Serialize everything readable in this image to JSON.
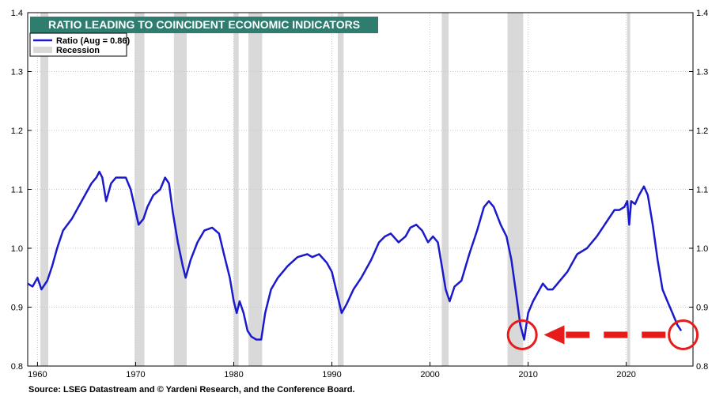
{
  "chart_data": {
    "type": "line",
    "title": "RATIO LEADING TO COINCIDENT ECONOMIC INDICATORS",
    "source": "Source: LSEG Datastream and © Yardeni Research, and the Conference Board.",
    "xlim": [
      1959.0,
      2026.8
    ],
    "ylim": [
      0.8,
      1.4
    ],
    "y_ticks": [
      0.8,
      0.9,
      1.0,
      1.1,
      1.2,
      1.3,
      1.4
    ],
    "y_tick_labels": [
      "0.8",
      "0.9",
      "1.0",
      "1.1",
      "1.2",
      "1.3",
      "1.4"
    ],
    "x_ticks": [
      1960,
      1970,
      1980,
      1990,
      2000,
      2010,
      2020
    ],
    "x_tick_labels": [
      "1960",
      "1970",
      "1980",
      "1990",
      "2000",
      "2010",
      "2020"
    ],
    "grid": true,
    "dual_y_axis": true,
    "legend": {
      "placement": "top-left",
      "entries": [
        {
          "label": "Ratio  (Aug = 0.86)",
          "kind": "line",
          "color": "#1a1acc"
        },
        {
          "label": "Recession",
          "kind": "band",
          "color": "#d9d9d9"
        }
      ]
    },
    "colors": {
      "line": "#1a1acc",
      "recession": "#d9d9d9",
      "title_box": "#2e7d6e",
      "annotation": "#e81b1b"
    },
    "recessions": [
      [
        1960.3,
        1961.1
      ],
      [
        1969.9,
        1970.9
      ],
      [
        1973.9,
        1975.2
      ],
      [
        1980.0,
        1980.5
      ],
      [
        1981.5,
        1982.9
      ],
      [
        1990.6,
        1991.2
      ],
      [
        2001.2,
        2001.9
      ],
      [
        2007.9,
        2009.5
      ],
      [
        2020.1,
        2020.4
      ]
    ],
    "series": [
      {
        "name": "Ratio",
        "x": [
          1959.0,
          1959.5,
          1960.0,
          1960.4,
          1961.0,
          1961.5,
          1962.0,
          1962.6,
          1963.5,
          1964.5,
          1965.5,
          1966.0,
          1966.3,
          1966.6,
          1967.0,
          1967.5,
          1968.0,
          1968.5,
          1969.0,
          1969.5,
          1969.9,
          1970.3,
          1970.8,
          1971.2,
          1971.8,
          1972.5,
          1973.0,
          1973.4,
          1973.8,
          1974.3,
          1974.8,
          1975.1,
          1975.6,
          1976.3,
          1977.0,
          1977.8,
          1978.5,
          1979.0,
          1979.6,
          1980.0,
          1980.3,
          1980.6,
          1981.0,
          1981.4,
          1981.8,
          1982.3,
          1982.8,
          1983.2,
          1983.8,
          1984.5,
          1985.5,
          1986.5,
          1987.5,
          1988.0,
          1988.7,
          1989.5,
          1990.0,
          1990.5,
          1991.0,
          1991.5,
          1992.2,
          1993.0,
          1994.0,
          1994.8,
          1995.4,
          1996.0,
          1996.8,
          1997.5,
          1998.0,
          1998.6,
          1999.2,
          1999.8,
          2000.3,
          2000.8,
          2001.2,
          2001.6,
          2002.0,
          2002.5,
          2003.2,
          2004.0,
          2004.8,
          2005.5,
          2006.0,
          2006.5,
          2007.2,
          2007.8,
          2008.3,
          2008.8,
          2009.2,
          2009.6,
          2010.0,
          2010.5,
          2011.0,
          2011.5,
          2012.0,
          2012.5,
          2013.0,
          2014.0,
          2015.0,
          2016.0,
          2017.0,
          2018.0,
          2018.8,
          2019.3,
          2019.8,
          2020.1,
          2020.3,
          2020.5,
          2020.9,
          2021.3,
          2021.8,
          2022.2,
          2022.7,
          2023.2,
          2023.7,
          2024.2,
          2024.7,
          2025.2,
          2025.6
        ],
        "values": [
          0.94,
          0.935,
          0.95,
          0.93,
          0.945,
          0.97,
          1.0,
          1.03,
          1.05,
          1.08,
          1.11,
          1.12,
          1.13,
          1.12,
          1.08,
          1.11,
          1.12,
          1.12,
          1.12,
          1.1,
          1.07,
          1.04,
          1.05,
          1.07,
          1.09,
          1.1,
          1.12,
          1.11,
          1.06,
          1.01,
          0.97,
          0.95,
          0.98,
          1.01,
          1.03,
          1.035,
          1.025,
          0.99,
          0.95,
          0.91,
          0.89,
          0.91,
          0.89,
          0.86,
          0.85,
          0.845,
          0.845,
          0.89,
          0.93,
          0.95,
          0.97,
          0.985,
          0.99,
          0.985,
          0.99,
          0.975,
          0.96,
          0.925,
          0.89,
          0.905,
          0.93,
          0.95,
          0.98,
          1.01,
          1.02,
          1.025,
          1.01,
          1.02,
          1.035,
          1.04,
          1.03,
          1.01,
          1.02,
          1.01,
          0.97,
          0.93,
          0.91,
          0.935,
          0.945,
          0.99,
          1.03,
          1.07,
          1.08,
          1.07,
          1.04,
          1.02,
          0.98,
          0.92,
          0.87,
          0.845,
          0.89,
          0.91,
          0.925,
          0.94,
          0.93,
          0.93,
          0.94,
          0.96,
          0.99,
          1.0,
          1.02,
          1.045,
          1.065,
          1.065,
          1.07,
          1.08,
          1.04,
          1.08,
          1.075,
          1.09,
          1.105,
          1.09,
          1.04,
          0.98,
          0.93,
          0.91,
          0.89,
          0.87,
          0.86
        ]
      }
    ],
    "annotations": {
      "circles": [
        {
          "x": 2009.4,
          "y": 0.853
        },
        {
          "x": 2025.8,
          "y": 0.853
        }
      ],
      "arrow": {
        "from_x": 2024.0,
        "to_x": 2011.6,
        "y": 0.853
      }
    }
  }
}
